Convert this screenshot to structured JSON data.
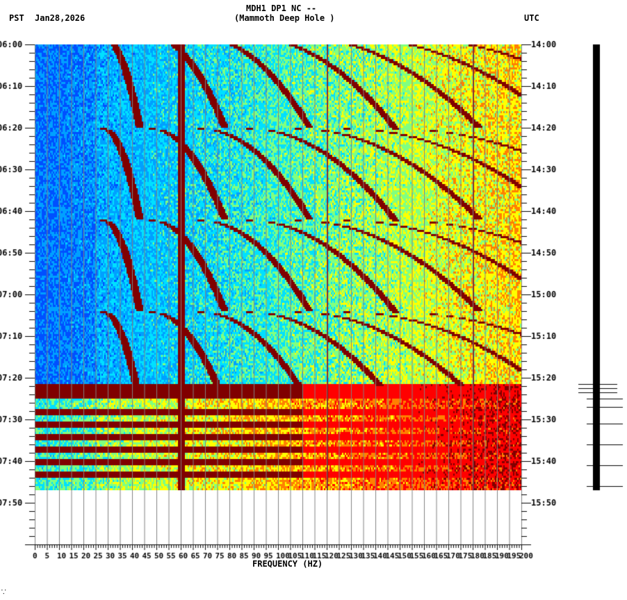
{
  "header": {
    "left_tz": "PST",
    "date": "Jan28,2026",
    "title_line1": "MDH1 DP1 NC --",
    "title_line2": "(Mammoth Deep Hole )",
    "right_tz": "UTC"
  },
  "footer_mark": "⸪",
  "chart_data": {
    "type": "heatmap",
    "title": "MDH1 DP1 NC -- (Mammoth Deep Hole )",
    "xlabel": "FREQUENCY (HZ)",
    "ylabel_left": "PST",
    "ylabel_right": "UTC",
    "xlim": [
      0,
      200
    ],
    "x_ticks": [
      "0",
      "5",
      "10",
      "15",
      "20",
      "25",
      "30",
      "35",
      "40",
      "45",
      "50",
      "55",
      "60",
      "65",
      "70",
      "75",
      "80",
      "85",
      "90",
      "95",
      "100",
      "105",
      "110",
      "115",
      "120",
      "125",
      "130",
      "135",
      "140",
      "145",
      "150",
      "155",
      "160",
      "165",
      "170",
      "175",
      "180",
      "185",
      "190",
      "195",
      "200"
    ],
    "y_ticks_left": [
      "06:00",
      "06:10",
      "06:20",
      "06:30",
      "06:40",
      "06:50",
      "07:00",
      "07:10",
      "07:20",
      "07:30",
      "07:40",
      "07:50"
    ],
    "y_ticks_right": [
      "14:00",
      "14:10",
      "14:20",
      "14:30",
      "14:40",
      "14:50",
      "15:00",
      "15:10",
      "15:20",
      "15:30",
      "15:40",
      "15:50"
    ],
    "data_extent_minutes": [
      0,
      107
    ],
    "axis_extent_minutes": [
      0,
      120
    ],
    "colormap": [
      "#0050ff",
      "#00a0ff",
      "#00e0ff",
      "#80ff80",
      "#ffff00",
      "#ff8000",
      "#ff0000",
      "#800000"
    ],
    "persistent_lines_hz": [
      60,
      120,
      180
    ],
    "notes": "Curved harmonic tracks (doppler-like sweeps) repeating ~every 22 min; broadband high-energy bands after 07:20 PST with diagonal sweeping features near 35-40, 70-75, 105-110, 140-150, 170-190 Hz."
  },
  "seismogram": {
    "label": "trace",
    "spikes_minutes": [
      81.5,
      82.5,
      83.5,
      85,
      87,
      91,
      96,
      101,
      106
    ]
  }
}
